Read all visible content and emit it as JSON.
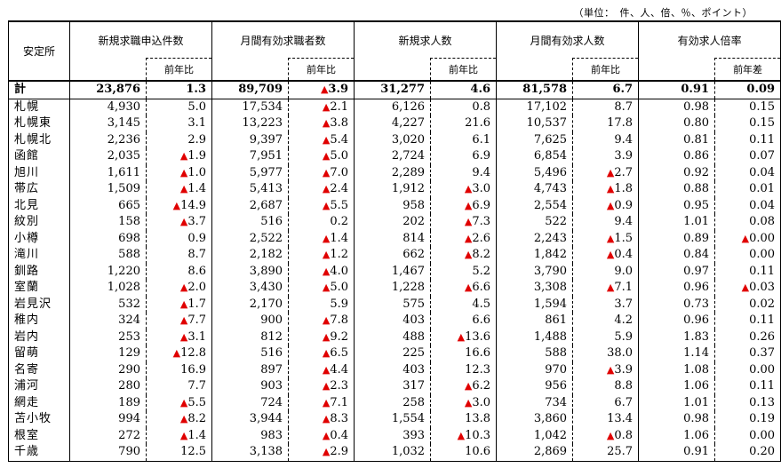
{
  "unit_note": "（単位：　件、人、倍、％、ポイント）",
  "headers": {
    "area": "安定所",
    "groups": [
      "新規求職申込件数",
      "月間有効求職者数",
      "新規求人数",
      "月間有効求人数",
      "有効求人倍率"
    ],
    "sub": [
      "前年比",
      "前年比",
      "前年比",
      "前年比",
      "前年差"
    ]
  },
  "neg_symbol": "▲",
  "rows": [
    [
      "計",
      "23,876",
      "1.3",
      "89,709",
      "▲3.9",
      "31,277",
      "4.6",
      "81,578",
      "6.7",
      "0.91",
      "0.09"
    ],
    [
      "札幌",
      "4,930",
      "5.0",
      "17,534",
      "▲2.1",
      "6,126",
      "0.8",
      "17,102",
      "8.7",
      "0.98",
      "0.15"
    ],
    [
      "札幌東",
      "3,145",
      "3.1",
      "13,223",
      "▲3.8",
      "4,227",
      "21.6",
      "10,537",
      "17.8",
      "0.80",
      "0.15"
    ],
    [
      "札幌北",
      "2,236",
      "2.9",
      "9,397",
      "▲5.4",
      "3,020",
      "6.1",
      "7,625",
      "9.4",
      "0.81",
      "0.11"
    ],
    [
      "函館",
      "2,035",
      "▲1.9",
      "7,951",
      "▲5.0",
      "2,724",
      "6.9",
      "6,854",
      "3.9",
      "0.86",
      "0.07"
    ],
    [
      "旭川",
      "1,611",
      "▲1.0",
      "5,977",
      "▲7.0",
      "2,289",
      "9.4",
      "5,496",
      "▲2.7",
      "0.92",
      "0.04"
    ],
    [
      "帯広",
      "1,509",
      "▲1.4",
      "5,413",
      "▲2.4",
      "1,912",
      "▲3.0",
      "4,743",
      "▲1.8",
      "0.88",
      "0.01"
    ],
    [
      "北見",
      "665",
      "▲14.9",
      "2,687",
      "▲5.5",
      "958",
      "▲6.9",
      "2,554",
      "▲0.9",
      "0.95",
      "0.04"
    ],
    [
      "紋別",
      "158",
      "▲3.7",
      "516",
      "0.2",
      "202",
      "▲7.3",
      "522",
      "9.4",
      "1.01",
      "0.08"
    ],
    [
      "小樽",
      "698",
      "0.9",
      "2,522",
      "▲1.4",
      "814",
      "▲2.6",
      "2,243",
      "▲1.5",
      "0.89",
      "▲0.00"
    ],
    [
      "滝川",
      "588",
      "8.7",
      "2,182",
      "▲1.2",
      "662",
      "▲8.2",
      "1,842",
      "▲0.4",
      "0.84",
      "0.00"
    ],
    [
      "釧路",
      "1,220",
      "8.6",
      "3,890",
      "▲4.0",
      "1,467",
      "5.2",
      "3,790",
      "9.0",
      "0.97",
      "0.11"
    ],
    [
      "室蘭",
      "1,028",
      "▲2.0",
      "3,430",
      "▲5.0",
      "1,228",
      "▲6.6",
      "3,308",
      "▲7.1",
      "0.96",
      "▲0.03"
    ],
    [
      "岩見沢",
      "532",
      "▲1.7",
      "2,170",
      "5.9",
      "575",
      "4.5",
      "1,594",
      "3.7",
      "0.73",
      "0.02"
    ],
    [
      "稚内",
      "324",
      "▲7.7",
      "900",
      "▲7.8",
      "403",
      "6.6",
      "861",
      "4.2",
      "0.96",
      "0.11"
    ],
    [
      "岩内",
      "253",
      "▲3.1",
      "812",
      "▲9.2",
      "488",
      "▲13.6",
      "1,488",
      "5.9",
      "1.83",
      "0.26"
    ],
    [
      "留萌",
      "129",
      "▲12.8",
      "516",
      "▲6.5",
      "225",
      "16.6",
      "588",
      "38.0",
      "1.14",
      "0.37"
    ],
    [
      "名寄",
      "290",
      "16.9",
      "897",
      "▲4.4",
      "403",
      "12.3",
      "970",
      "▲3.9",
      "1.08",
      "0.00"
    ],
    [
      "浦河",
      "280",
      "7.7",
      "903",
      "▲2.3",
      "317",
      "▲6.2",
      "956",
      "8.8",
      "1.06",
      "0.11"
    ],
    [
      "網走",
      "189",
      "▲5.5",
      "724",
      "▲7.1",
      "258",
      "▲3.0",
      "734",
      "6.7",
      "1.01",
      "0.13"
    ],
    [
      "苫小牧",
      "994",
      "▲8.2",
      "3,944",
      "▲8.3",
      "1,554",
      "13.8",
      "3,860",
      "13.4",
      "0.98",
      "0.19"
    ],
    [
      "根室",
      "272",
      "▲1.4",
      "983",
      "▲0.4",
      "393",
      "▲10.3",
      "1,042",
      "▲0.8",
      "1.06",
      "0.00"
    ],
    [
      "千歳",
      "790",
      "12.5",
      "3,138",
      "▲2.9",
      "1,032",
      "10.6",
      "2,869",
      "25.7",
      "0.91",
      "0.20"
    ]
  ],
  "colors": {
    "negative": "#e00000",
    "text": "#000000"
  }
}
